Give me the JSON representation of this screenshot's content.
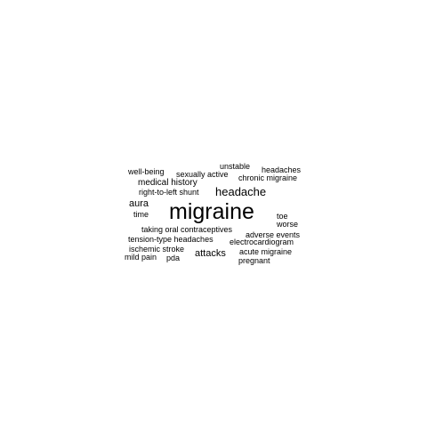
{
  "cloud": {
    "text_color": "#000000",
    "words": [
      {
        "id": "unstable",
        "text": "unstable",
        "weight": 1
      },
      {
        "id": "headaches",
        "text": "headaches",
        "weight": 1
      },
      {
        "id": "well-being",
        "text": "well-being",
        "weight": 1
      },
      {
        "id": "sexually-active",
        "text": "sexually active",
        "weight": 1
      },
      {
        "id": "chronic-migraine",
        "text": "chronic migraine",
        "weight": 1
      },
      {
        "id": "medical-history",
        "text": "medical history",
        "weight": 1.3
      },
      {
        "id": "right-to-left-shunt",
        "text": "right-to-left shunt",
        "weight": 1
      },
      {
        "id": "headache",
        "text": "headache",
        "weight": 2.2
      },
      {
        "id": "aura",
        "text": "aura",
        "weight": 1.5
      },
      {
        "id": "migraine",
        "text": "migraine",
        "weight": 4
      },
      {
        "id": "time",
        "text": "time",
        "weight": 1
      },
      {
        "id": "toe",
        "text": "toe",
        "weight": 1
      },
      {
        "id": "worse",
        "text": "worse",
        "weight": 1
      },
      {
        "id": "taking-oral-contraceptives",
        "text": "taking oral contraceptives",
        "weight": 1
      },
      {
        "id": "adverse-events",
        "text": "adverse events",
        "weight": 1
      },
      {
        "id": "tension-type-headaches",
        "text": "tension-type headaches",
        "weight": 1
      },
      {
        "id": "electrocardiogram",
        "text": "electrocardiogram",
        "weight": 1.2
      },
      {
        "id": "ischemic-stroke",
        "text": "ischemic stroke",
        "weight": 1
      },
      {
        "id": "acute-migraine",
        "text": "acute migraine",
        "weight": 1
      },
      {
        "id": "attacks",
        "text": "attacks",
        "weight": 1.5
      },
      {
        "id": "mild-pain",
        "text": "mild pain",
        "weight": 1
      },
      {
        "id": "pda",
        "text": "pda",
        "weight": 1
      },
      {
        "id": "pregnant",
        "text": "pregnant",
        "weight": 1
      }
    ]
  }
}
